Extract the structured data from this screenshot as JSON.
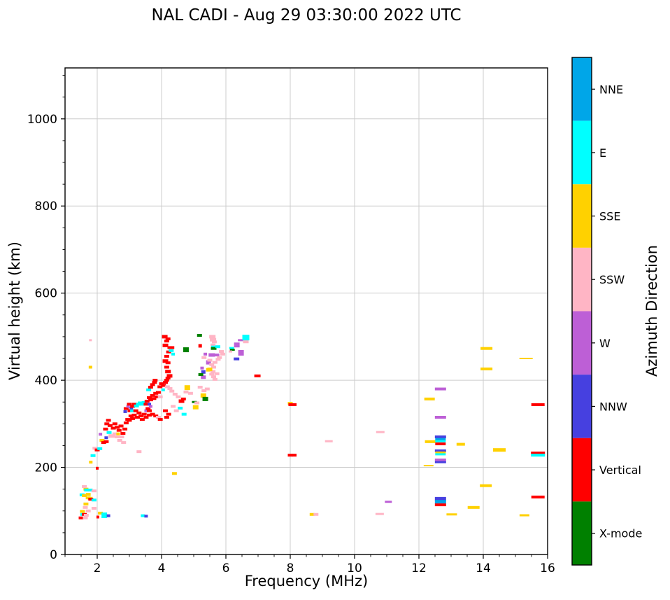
{
  "chart_data": {
    "type": "scatter",
    "title": "NAL CADI - Aug 29 03:30:00 2022 UTC",
    "xlabel": "Frequency (MHz)",
    "ylabel": "Virtual height (km)",
    "xlim": [
      1,
      16
    ],
    "ylim": [
      0,
      1117
    ],
    "x_ticks": [
      2,
      4,
      6,
      8,
      10,
      12,
      14,
      16
    ],
    "y_ticks": [
      0,
      200,
      400,
      600,
      800,
      1000
    ],
    "x_minor_step": 0.5,
    "y_minor_step": 50,
    "grid": true,
    "grid_color": "#cccccc",
    "colorbar": {
      "label": "Azimuth Direction",
      "categories": [
        {
          "label": "NNE",
          "color": "#00a6e8"
        },
        {
          "label": "E",
          "color": "#00ffff"
        },
        {
          "label": "SSE",
          "color": "#ffd100"
        },
        {
          "label": "SSW",
          "color": "#ffb5c5"
        },
        {
          "label": "W",
          "color": "#bd5fd6"
        },
        {
          "label": "NNW",
          "color": "#4640e0"
        },
        {
          "label": "Vertical",
          "color": "#ff0000"
        },
        {
          "label": "X-mode",
          "color": "#008000"
        }
      ]
    },
    "point_color_codes": {
      "N": "NNE",
      "E": "E",
      "S": "SSE",
      "P": "SSW",
      "W": "W",
      "B": "NNW",
      "V": "Vertical",
      "X": "X-mode"
    },
    "points_format": "[freq_MHz, height_km, direction_code, width_px(optional,default 7), height_px(optional,default 4)]",
    "points": [
      [
        1.5,
        84,
        "V"
      ],
      [
        1.63,
        84,
        "P"
      ],
      [
        1.55,
        92,
        "E"
      ],
      [
        1.6,
        92,
        "V"
      ],
      [
        1.66,
        90,
        "P"
      ],
      [
        1.54,
        99,
        "S"
      ],
      [
        1.63,
        108,
        "P"
      ],
      [
        1.72,
        100,
        "P"
      ],
      [
        1.9,
        106,
        "P"
      ],
      [
        1.65,
        116,
        "S"
      ],
      [
        1.72,
        130,
        "S"
      ],
      [
        1.78,
        129,
        "S"
      ],
      [
        1.8,
        127,
        "V"
      ],
      [
        1.9,
        125,
        "E"
      ],
      [
        1.53,
        137,
        "E"
      ],
      [
        1.6,
        135,
        "S"
      ],
      [
        1.72,
        138,
        "S"
      ],
      [
        1.65,
        150,
        "S"
      ],
      [
        1.67,
        148,
        "E"
      ],
      [
        1.78,
        148,
        "E"
      ],
      [
        1.9,
        146,
        "P"
      ],
      [
        1.6,
        156,
        "P"
      ],
      [
        2.1,
        95,
        "S"
      ],
      [
        2.22,
        90,
        "E",
        8,
        8
      ],
      [
        2.35,
        89,
        "B",
        5,
        4
      ],
      [
        2.02,
        86,
        "V",
        4,
        4
      ],
      [
        3.42,
        89,
        "E",
        6,
        4
      ],
      [
        3.52,
        88,
        "B",
        5,
        4
      ],
      [
        1.79,
        492,
        "P",
        4,
        3
      ],
      [
        1.79,
        430,
        "S",
        5,
        4
      ],
      [
        3.3,
        236,
        "P"
      ],
      [
        2.0,
        198,
        "V",
        4,
        4
      ],
      [
        4.4,
        186,
        "S"
      ],
      [
        1.8,
        212,
        "S",
        5,
        4
      ],
      [
        1.87,
        227,
        "E"
      ],
      [
        1.93,
        244,
        "P"
      ],
      [
        2.0,
        240,
        "V"
      ],
      [
        2.08,
        243,
        "E"
      ],
      [
        2.15,
        262,
        "S"
      ],
      [
        2.1,
        276,
        "W",
        5,
        4
      ],
      [
        2.28,
        268,
        "B",
        5,
        4
      ],
      [
        2.2,
        257,
        "V"
      ],
      [
        2.26,
        288,
        "V"
      ],
      [
        2.37,
        280,
        "E"
      ],
      [
        2.45,
        272,
        "P",
        9,
        5
      ],
      [
        2.3,
        300,
        "V"
      ],
      [
        2.4,
        296,
        "V"
      ],
      [
        2.35,
        308,
        "V"
      ],
      [
        2.28,
        259,
        "V"
      ],
      [
        2.5,
        290,
        "V"
      ],
      [
        2.55,
        277,
        "P"
      ],
      [
        2.62,
        270,
        "P"
      ],
      [
        2.65,
        277,
        "S",
        5,
        4
      ],
      [
        2.7,
        262,
        "P"
      ],
      [
        2.76,
        270,
        "P"
      ],
      [
        2.82,
        257,
        "P"
      ],
      [
        2.55,
        300,
        "V"
      ],
      [
        2.62,
        292,
        "V"
      ],
      [
        2.68,
        285,
        "V"
      ],
      [
        2.74,
        295,
        "V"
      ],
      [
        2.8,
        278,
        "V"
      ],
      [
        2.86,
        288,
        "V"
      ],
      [
        2.87,
        328,
        "B",
        5,
        4
      ],
      [
        2.9,
        335,
        "V"
      ],
      [
        2.96,
        340,
        "W",
        5,
        4
      ],
      [
        3.02,
        330,
        "V"
      ],
      [
        3.0,
        345,
        "V"
      ],
      [
        3.06,
        336,
        "B",
        5,
        4
      ],
      [
        3.1,
        340,
        "V"
      ],
      [
        3.1,
        330,
        "E"
      ],
      [
        3.16,
        345,
        "V"
      ],
      [
        3.22,
        341,
        "E"
      ],
      [
        3.28,
        345,
        "E"
      ],
      [
        3.34,
        348,
        "E"
      ],
      [
        3.4,
        345,
        "E"
      ],
      [
        3.46,
        349,
        "E"
      ],
      [
        3.52,
        345,
        "V"
      ],
      [
        3.2,
        330,
        "V"
      ],
      [
        3.3,
        325,
        "V"
      ],
      [
        3.15,
        320,
        "V"
      ],
      [
        3.05,
        318,
        "V"
      ],
      [
        2.95,
        310,
        "V"
      ],
      [
        2.9,
        302,
        "V"
      ],
      [
        3.0,
        308,
        "V"
      ],
      [
        3.1,
        312,
        "V"
      ],
      [
        3.25,
        315,
        "V"
      ],
      [
        3.36,
        318,
        "V"
      ],
      [
        3.46,
        322,
        "V"
      ],
      [
        3.52,
        330,
        "W",
        5,
        4
      ],
      [
        3.58,
        335,
        "V"
      ],
      [
        3.62,
        330,
        "V"
      ],
      [
        3.4,
        310,
        "V"
      ],
      [
        3.52,
        315,
        "V"
      ],
      [
        3.62,
        320,
        "V"
      ],
      [
        3.72,
        322,
        "V"
      ],
      [
        3.82,
        318,
        "V"
      ],
      [
        3.9,
        315,
        "P"
      ],
      [
        3.96,
        310,
        "V"
      ],
      [
        3.55,
        352,
        "V"
      ],
      [
        3.62,
        360,
        "V"
      ],
      [
        3.66,
        355,
        "V"
      ],
      [
        3.72,
        365,
        "V"
      ],
      [
        3.76,
        358,
        "V"
      ],
      [
        3.82,
        370,
        "V"
      ],
      [
        3.86,
        362,
        "V"
      ],
      [
        3.9,
        372,
        "V"
      ],
      [
        3.62,
        345,
        "B",
        5,
        4
      ],
      [
        3.66,
        340,
        "W",
        5,
        4
      ],
      [
        3.6,
        378,
        "E"
      ],
      [
        3.66,
        384,
        "V"
      ],
      [
        3.72,
        390,
        "V"
      ],
      [
        3.78,
        395,
        "V"
      ],
      [
        3.8,
        400,
        "V"
      ],
      [
        3.95,
        385,
        "V"
      ],
      [
        4.0,
        392,
        "V"
      ],
      [
        4.06,
        388,
        "V"
      ],
      [
        4.12,
        395,
        "V"
      ],
      [
        4.05,
        378,
        "E",
        5,
        4
      ],
      [
        4.16,
        400,
        "V"
      ],
      [
        4.2,
        405,
        "V"
      ],
      [
        4.25,
        410,
        "V",
        8,
        5
      ],
      [
        4.2,
        420,
        "V",
        8,
        5
      ],
      [
        4.16,
        430,
        "V"
      ],
      [
        4.2,
        440,
        "V"
      ],
      [
        4.12,
        444,
        "V",
        8,
        5
      ],
      [
        4.16,
        455,
        "V"
      ],
      [
        4.22,
        465,
        "V"
      ],
      [
        4.26,
        475,
        "V"
      ],
      [
        4.12,
        480,
        "V",
        8,
        5
      ],
      [
        4.16,
        490,
        "V"
      ],
      [
        4.1,
        500,
        "V",
        8,
        5
      ],
      [
        4.2,
        495,
        "V"
      ],
      [
        4.3,
        468,
        "E"
      ],
      [
        4.32,
        475,
        "V"
      ],
      [
        4.36,
        460,
        "E",
        5,
        4
      ],
      [
        4.12,
        330,
        "V"
      ],
      [
        4.16,
        315,
        "V"
      ],
      [
        4.22,
        322,
        "V"
      ],
      [
        4.18,
        385,
        "P"
      ],
      [
        4.26,
        381,
        "P"
      ],
      [
        4.32,
        375,
        "P"
      ],
      [
        4.42,
        368,
        "P"
      ],
      [
        4.52,
        362,
        "P"
      ],
      [
        4.62,
        352,
        "V",
        8,
        5
      ],
      [
        4.68,
        357,
        "V"
      ],
      [
        4.7,
        322,
        "E"
      ],
      [
        4.58,
        336,
        "E"
      ],
      [
        4.76,
        373,
        "P"
      ],
      [
        4.8,
        383,
        "S",
        8,
        7
      ],
      [
        4.9,
        370,
        "P"
      ],
      [
        5.02,
        350,
        "X",
        7,
        3
      ],
      [
        5.06,
        338,
        "S",
        8,
        6
      ],
      [
        5.1,
        348,
        "P"
      ],
      [
        5.2,
        384,
        "P"
      ],
      [
        5.3,
        365,
        "S",
        8,
        6
      ],
      [
        5.36,
        357,
        "X",
        8,
        6
      ],
      [
        5.32,
        376,
        "P"
      ],
      [
        5.42,
        380,
        "P"
      ],
      [
        4.46,
        330,
        "P"
      ],
      [
        4.36,
        340,
        "P"
      ],
      [
        3.96,
        362,
        "P"
      ],
      [
        4.76,
        470,
        "X",
        8,
        7
      ],
      [
        5.18,
        503,
        "X",
        7,
        4
      ],
      [
        5.2,
        479,
        "V",
        5,
        5
      ],
      [
        5.58,
        500,
        "P",
        9,
        5
      ],
      [
        5.6,
        493,
        "P",
        9,
        5
      ],
      [
        5.64,
        488,
        "P"
      ],
      [
        5.6,
        481,
        "P"
      ],
      [
        5.62,
        477,
        "E",
        7,
        3
      ],
      [
        5.62,
        473,
        "X",
        8,
        4
      ],
      [
        5.56,
        458,
        "W",
        9,
        5
      ],
      [
        5.72,
        458,
        "W"
      ],
      [
        5.46,
        441,
        "W",
        7,
        6
      ],
      [
        5.5,
        446,
        "P"
      ],
      [
        5.56,
        436,
        "P"
      ],
      [
        5.62,
        430,
        "P"
      ],
      [
        5.66,
        441,
        "P"
      ],
      [
        5.6,
        420,
        "P"
      ],
      [
        5.56,
        414,
        "P"
      ],
      [
        5.5,
        425,
        "S",
        7,
        5
      ],
      [
        5.3,
        419,
        "B",
        6,
        5
      ],
      [
        5.26,
        428,
        "W",
        5,
        4
      ],
      [
        5.62,
        408,
        "P"
      ],
      [
        5.66,
        402,
        "P"
      ],
      [
        5.72,
        415,
        "P"
      ],
      [
        5.76,
        448,
        "P"
      ],
      [
        5.8,
        452,
        "P"
      ],
      [
        5.36,
        460,
        "W",
        5,
        4
      ],
      [
        5.32,
        452,
        "P"
      ],
      [
        5.75,
        477,
        "E"
      ],
      [
        5.3,
        407,
        "W",
        7,
        5
      ],
      [
        5.22,
        413,
        "X",
        7,
        4
      ],
      [
        5.45,
        424,
        "S",
        6,
        5
      ],
      [
        5.86,
        466,
        "P"
      ],
      [
        5.9,
        460,
        "P"
      ],
      [
        6.18,
        474,
        "E",
        7,
        3
      ],
      [
        6.2,
        470,
        "X",
        7,
        3
      ],
      [
        6.14,
        466,
        "P",
        5,
        3
      ],
      [
        6.34,
        481,
        "W",
        8,
        7
      ],
      [
        6.46,
        492,
        "W",
        8,
        3
      ],
      [
        6.62,
        489,
        "P",
        8,
        5
      ],
      [
        6.62,
        498,
        "E",
        10,
        8
      ],
      [
        6.47,
        463,
        "W",
        8,
        8
      ],
      [
        6.33,
        449,
        "B",
        8,
        4
      ],
      [
        6.98,
        410,
        "V",
        9,
        4
      ],
      [
        8.0,
        347,
        "S"
      ],
      [
        8.02,
        344,
        "V"
      ],
      [
        8.12,
        344,
        "V"
      ],
      [
        8.0,
        228,
        "V"
      ],
      [
        8.12,
        228,
        "V"
      ],
      [
        8.68,
        92,
        "S",
        7,
        4
      ],
      [
        8.8,
        92,
        "P",
        7,
        4
      ],
      [
        9.2,
        260,
        "P",
        11,
        3
      ],
      [
        10.8,
        281,
        "P",
        12,
        3
      ],
      [
        10.78,
        93,
        "P",
        12,
        3
      ],
      [
        11.05,
        121,
        "W",
        10,
        3
      ],
      [
        12.33,
        357,
        "S",
        15,
        4
      ],
      [
        12.67,
        380,
        "W",
        16,
        4
      ],
      [
        12.67,
        315,
        "W",
        16,
        4
      ],
      [
        12.67,
        270,
        "B",
        16,
        4
      ],
      [
        12.35,
        259,
        "S",
        15,
        4
      ],
      [
        12.67,
        264,
        "N",
        15,
        4
      ],
      [
        12.67,
        260,
        "E",
        15,
        3
      ],
      [
        12.67,
        254,
        "V",
        15,
        4
      ],
      [
        13.3,
        253,
        "S",
        12,
        4
      ],
      [
        12.67,
        238,
        "B",
        16,
        4
      ],
      [
        12.67,
        234,
        "S",
        15,
        3
      ],
      [
        12.67,
        230,
        "E",
        15,
        3
      ],
      [
        12.67,
        217,
        "W",
        16,
        4
      ],
      [
        12.67,
        212,
        "B",
        16,
        3
      ],
      [
        12.3,
        204,
        "S",
        14,
        2
      ],
      [
        14.5,
        240,
        "S",
        18,
        5
      ],
      [
        14.08,
        158,
        "S",
        17,
        4
      ],
      [
        12.67,
        128,
        "B",
        16,
        5
      ],
      [
        12.67,
        121,
        "N",
        16,
        5
      ],
      [
        12.67,
        114,
        "V",
        16,
        4
      ],
      [
        13.7,
        108,
        "S",
        17,
        4
      ],
      [
        13.02,
        92,
        "S",
        15,
        3
      ],
      [
        14.1,
        473,
        "S",
        17,
        4
      ],
      [
        15.33,
        450,
        "S",
        19,
        2
      ],
      [
        14.1,
        426,
        "S",
        17,
        4
      ],
      [
        15.7,
        344,
        "V",
        19,
        4
      ],
      [
        15.7,
        233,
        "V",
        20,
        4
      ],
      [
        15.7,
        228,
        "E",
        20,
        4
      ],
      [
        15.7,
        132,
        "V",
        19,
        4
      ],
      [
        15.28,
        90,
        "S",
        14,
        3
      ]
    ]
  }
}
